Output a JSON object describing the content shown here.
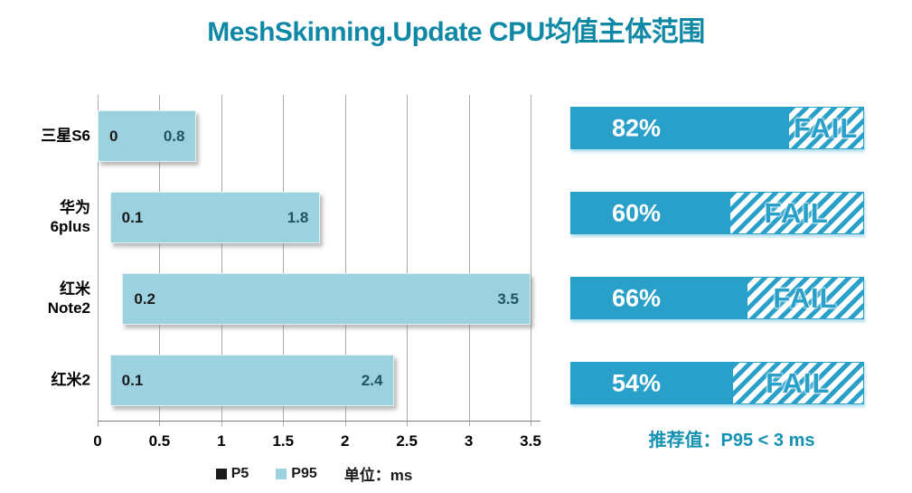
{
  "title": "MeshSkinning.Update CPU均值主体范围",
  "colors": {
    "title_teal": "#0F88A6",
    "range_bar_fill": "#9CD1E0",
    "p5_label": "#1A1A1A",
    "p95_label": "#1E5565",
    "pass_bar_fill": "#29A0C9",
    "fail_text": "#29A0C9",
    "percent_text": "#FFFFFF",
    "gridline": "#ABABAB",
    "note_teal": "#1591B2"
  },
  "chart_data": {
    "type": "bar",
    "orientation": "horizontal-range",
    "title": "MeshSkinning.Update CPU均值主体范围",
    "unit": "ms",
    "categories": [
      "三星S6",
      "华为\n6plus",
      "红米\nNote2",
      "红米2"
    ],
    "series": [
      {
        "name": "P5",
        "values": [
          0,
          0.1,
          0.2,
          0.1
        ]
      },
      {
        "name": "P95",
        "values": [
          0.8,
          1.8,
          3.5,
          2.4
        ]
      }
    ],
    "xlim": [
      0,
      3.5
    ],
    "xticks": [
      0,
      0.5,
      1,
      1.5,
      2,
      2.5,
      3,
      3.5
    ],
    "grid": "vertical-on",
    "legend_position": "bottom-center"
  },
  "legend": {
    "items": [
      {
        "label": "P5",
        "color": "#1A1A1A"
      },
      {
        "label": "P95",
        "color": "#9CD1E0"
      }
    ],
    "unit_label": "单位：ms"
  },
  "pass_rates": [
    {
      "device": "三星S6",
      "label": "82%",
      "fill_pct": 74,
      "status": "FAIL"
    },
    {
      "device": "华为6plus",
      "label": "60%",
      "fill_pct": 54,
      "status": "FAIL"
    },
    {
      "device": "红米Note2",
      "label": "66%",
      "fill_pct": 60,
      "status": "FAIL"
    },
    {
      "device": "红米2",
      "label": "54%",
      "fill_pct": 55,
      "status": "FAIL"
    }
  ],
  "recommendation": "推荐值：P95 < 3 ms"
}
